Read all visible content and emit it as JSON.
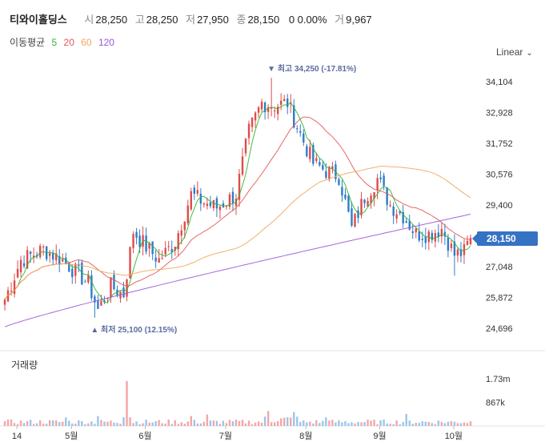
{
  "header": {
    "name": "티와이홀딩스",
    "open_label": "시",
    "open": "28,250",
    "high_label": "고",
    "high": "28,250",
    "low_label": "저",
    "low": "27,950",
    "close_label": "종",
    "close": "28,150",
    "change": "0 0.00%",
    "volume_label": "거",
    "volume": "9,967"
  },
  "ma_legend": {
    "label": "이동평균",
    "items": [
      {
        "period": "5",
        "color": "#2eb62c"
      },
      {
        "period": "20",
        "color": "#e25757"
      },
      {
        "period": "60",
        "color": "#f2a65a"
      },
      {
        "period": "120",
        "color": "#9c55d6"
      }
    ]
  },
  "scale_toggle": {
    "label": "Linear",
    "icon": "chevron-down-icon"
  },
  "volume_panel": {
    "title": "거래량"
  },
  "last_price": "28,150",
  "colors": {
    "up": "#e04b4b",
    "down": "#2f7cc9",
    "vol_up": "#f4a6a6",
    "vol_down": "#9cc5ec"
  },
  "chart_data": {
    "type": "candlestick",
    "price_ticks": [
      "34,104",
      "32,928",
      "31,752",
      "30,576",
      "29,400",
      "27,048",
      "25,872",
      "24,696"
    ],
    "price_tick_values": [
      34104,
      32928,
      31752,
      30576,
      29400,
      27048,
      25872,
      24696
    ],
    "volume_ticks": [
      "1.73m",
      "867k"
    ],
    "volume_tick_values": [
      1730000,
      867000
    ],
    "x_ticks": [
      "14",
      "5월",
      "6월",
      "7월",
      "8월",
      "9월",
      "10월"
    ],
    "x_tick_positions": [
      0,
      17,
      40,
      65,
      90,
      113,
      136
    ],
    "ylim": [
      24300,
      34700
    ],
    "n_bars": 146,
    "annotations": [
      {
        "text": "최고 34,250 (-17.81%)",
        "bar": 83,
        "value": 34250,
        "marker": "▼"
      },
      {
        "text": "최저 25,100 (12.15%)",
        "bar": 28,
        "value": 25100,
        "marker": "▲"
      }
    ],
    "close_keyframes": [
      {
        "bar": 0,
        "value": 25800
      },
      {
        "bar": 5,
        "value": 27300
      },
      {
        "bar": 12,
        "value": 27700
      },
      {
        "bar": 18,
        "value": 27300
      },
      {
        "bar": 26,
        "value": 26400
      },
      {
        "bar": 29,
        "value": 25400
      },
      {
        "bar": 33,
        "value": 26300
      },
      {
        "bar": 37,
        "value": 26000
      },
      {
        "bar": 40,
        "value": 28400
      },
      {
        "bar": 44,
        "value": 27800
      },
      {
        "bar": 48,
        "value": 27300
      },
      {
        "bar": 53,
        "value": 28000
      },
      {
        "bar": 58,
        "value": 29800
      },
      {
        "bar": 62,
        "value": 29500
      },
      {
        "bar": 66,
        "value": 29300
      },
      {
        "bar": 72,
        "value": 29800
      },
      {
        "bar": 76,
        "value": 32200
      },
      {
        "bar": 80,
        "value": 33300
      },
      {
        "bar": 84,
        "value": 33200
      },
      {
        "bar": 88,
        "value": 33300
      },
      {
        "bar": 92,
        "value": 32100
      },
      {
        "bar": 96,
        "value": 31000
      },
      {
        "bar": 100,
        "value": 30700
      },
      {
        "bar": 104,
        "value": 30500
      },
      {
        "bar": 108,
        "value": 28500
      },
      {
        "bar": 112,
        "value": 29700
      },
      {
        "bar": 116,
        "value": 30400
      },
      {
        "bar": 120,
        "value": 29400
      },
      {
        "bar": 124,
        "value": 29000
      },
      {
        "bar": 128,
        "value": 28300
      },
      {
        "bar": 132,
        "value": 28300
      },
      {
        "bar": 136,
        "value": 28500
      },
      {
        "bar": 140,
        "value": 27500
      },
      {
        "bar": 143,
        "value": 27600
      },
      {
        "bar": 145,
        "value": 28150
      }
    ]
  }
}
